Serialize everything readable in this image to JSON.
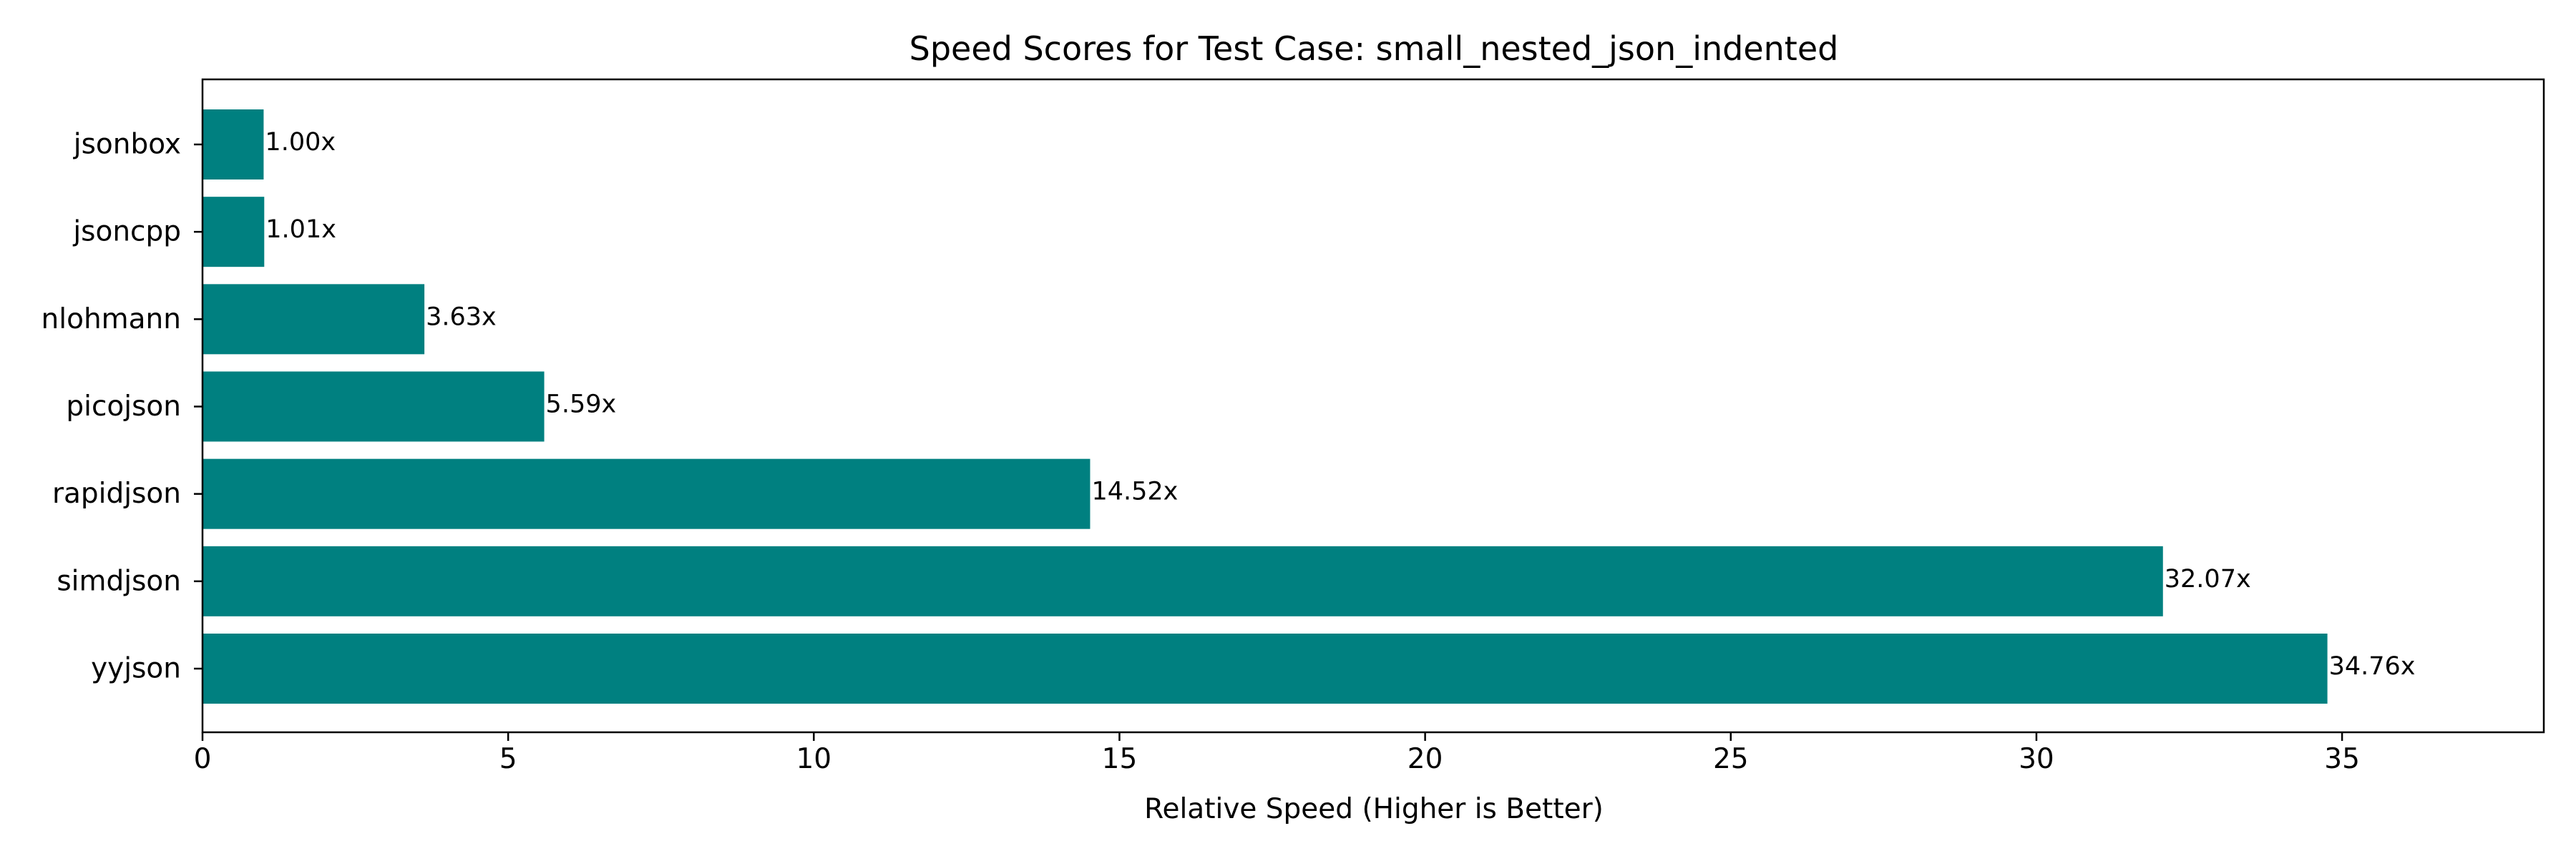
{
  "chart_data": {
    "type": "bar",
    "orientation": "horizontal",
    "title": "Speed Scores for Test Case: small_nested_json_indented",
    "xlabel": "Relative Speed (Higher is Better)",
    "ylabel": "",
    "categories": [
      "jsonbox",
      "jsoncpp",
      "nlohmann",
      "picojson",
      "rapidjson",
      "simdjson",
      "yyjson"
    ],
    "values": [
      1.0,
      1.01,
      3.63,
      5.59,
      14.52,
      32.07,
      34.76
    ],
    "data_labels": [
      "1.00x",
      "1.01x",
      "3.63x",
      "5.59x",
      "14.52x",
      "32.07x",
      "34.76x"
    ],
    "xlim": [
      0,
      38.3
    ],
    "xticks": [
      0,
      5,
      10,
      15,
      20,
      25,
      30,
      35
    ],
    "xtick_labels": [
      "0",
      "5",
      "10",
      "15",
      "20",
      "25",
      "30",
      "35"
    ],
    "bar_color": "#008080",
    "grid": false,
    "legend": "none"
  }
}
